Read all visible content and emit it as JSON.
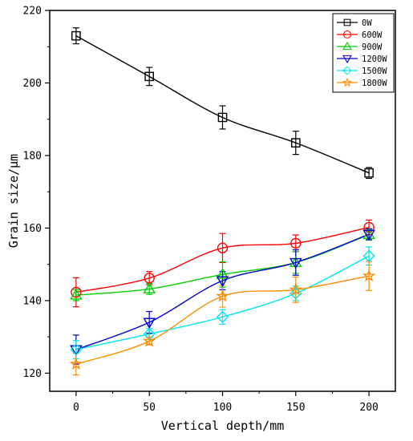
{
  "chart_data": {
    "type": "line",
    "title": "",
    "xlabel": "Vertical depth/mm",
    "ylabel": "Grain size/μm",
    "x": [
      0,
      50,
      100,
      150,
      200
    ],
    "xticks": [
      0,
      50,
      100,
      150,
      200
    ],
    "yticks": [
      120,
      140,
      160,
      180,
      200,
      220
    ],
    "xlim": [
      -18,
      218
    ],
    "ylim": [
      115,
      220
    ],
    "grid": false,
    "legend_position": "top-right",
    "series": [
      {
        "name": "0W",
        "color": "#000000",
        "marker": "square",
        "values": [
          213,
          201.8,
          190.5,
          183.5,
          175.2
        ],
        "errors": [
          2.2,
          2.5,
          3.2,
          3.2,
          1.5
        ]
      },
      {
        "name": "600W",
        "color": "#ff0000",
        "marker": "circle",
        "values": [
          142.3,
          146.2,
          154.5,
          155.8,
          160.2
        ],
        "errors": [
          4,
          1.8,
          4,
          2.3,
          2
        ]
      },
      {
        "name": "900W",
        "color": "#00cc00",
        "marker": "triangle-up",
        "values": [
          141.5,
          143.2,
          147.2,
          150.5,
          158.2
        ],
        "errors": [
          1.5,
          1.5,
          3.5,
          3,
          1.5
        ]
      },
      {
        "name": "1200W",
        "color": "#0000cc",
        "marker": "triangle-down",
        "values": [
          126.5,
          134,
          145.5,
          150.5,
          158.3
        ],
        "errors": [
          4,
          3,
          2.5,
          3.5,
          1.5
        ]
      },
      {
        "name": "1500W",
        "color": "#00e5ee",
        "marker": "diamond",
        "values": [
          126.5,
          130.8,
          135.5,
          142,
          152.3
        ],
        "errors": [
          2.5,
          1.5,
          2,
          2,
          2.5
        ]
      },
      {
        "name": "1800W",
        "color": "#ff8c00",
        "marker": "star",
        "values": [
          122.5,
          128.8,
          141.2,
          143,
          146.8
        ],
        "errors": [
          3,
          1,
          3,
          3.5,
          4
        ]
      }
    ]
  }
}
